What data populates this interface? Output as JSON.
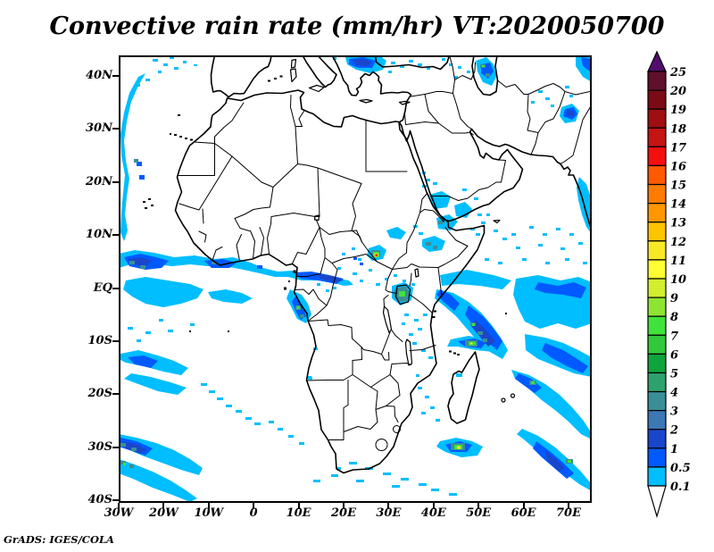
{
  "title": "Convective rain rate (mm/hr) VT:2020050700",
  "credit": "GrADS: IGES/COLA",
  "axes": {
    "lat_labels": [
      "40N",
      "30N",
      "20N",
      "10N",
      "EQ",
      "10S",
      "20S",
      "30S",
      "40S"
    ],
    "lon_labels": [
      "30W",
      "20W",
      "10W",
      "0",
      "10E",
      "20E",
      "30E",
      "40E",
      "50E",
      "60E",
      "70E"
    ]
  },
  "colorbar": {
    "boundary_labels_top_to_bottom": [
      "25",
      "20",
      "19",
      "18",
      "17",
      "16",
      "15",
      "14",
      "13",
      "12",
      "11",
      "10",
      "9",
      "8",
      "7",
      "6",
      "5",
      "4",
      "3",
      "2",
      "1",
      "0.5",
      "0.1"
    ],
    "segment_colors_top_to_bottom": [
      "#60102D",
      "#7A0A14",
      "#9E0E12",
      "#C41414",
      "#F50F0F",
      "#FF5A00",
      "#FF7C00",
      "#FF9800",
      "#FFC400",
      "#F8E826",
      "#FFFF33",
      "#D2EE2E",
      "#8FE433",
      "#40E23C",
      "#32C83C",
      "#0FA43C",
      "#2EA26E",
      "#3A8F96",
      "#3C78B4",
      "#1A46CC",
      "#005AFF",
      "#00BEFF"
    ],
    "top_arrow_color": "#530D6E",
    "bottom_arrow_color": "#FFFFFF",
    "outline_color": "#000000"
  },
  "precip_palette": {
    "cyan_0p1": "#00BEFF",
    "blue_0p5": "#005AFF",
    "navy_1": "#1A46CC",
    "steel_2": "#3C78B4",
    "teal_3": "#3A8F96",
    "tealgreen_4": "#2EA26E",
    "green_6": "#32C83C",
    "brightgreen_7": "#40E23C",
    "yellowgreen_8": "#8FE433",
    "yellow_11": "#F8E826",
    "red_16": "#F50F0F"
  },
  "map_ink": "#000000"
}
